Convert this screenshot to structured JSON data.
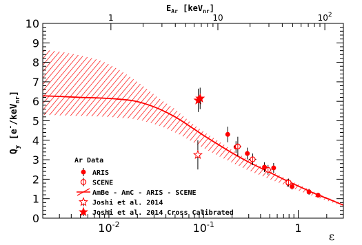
{
  "chart_data": {
    "type": "scatter",
    "x_scale": "log",
    "xlim": [
      0.002,
      3.0
    ],
    "ylim": [
      0,
      10
    ],
    "xlabel": "ε",
    "ylabel": {
      "main": "Q",
      "sub": "y",
      "unit_open": "[e",
      "unit_sup": "-",
      "unit_mid": "/keV",
      "unit_sub": "nr",
      "unit_close": "]"
    },
    "top_axis": {
      "label_main": "E",
      "label_sub": "Ar",
      "unit_open": "[keV",
      "unit_sub": "nr",
      "unit_close": "]",
      "ticks": [
        {
          "energy": 1,
          "label": "1"
        },
        {
          "energy": 10,
          "label": "10"
        },
        {
          "energy": 100,
          "label": "10",
          "sup": "2"
        }
      ]
    },
    "x_ticks_major": [
      {
        "value": 0.01,
        "base": "10",
        "exp": "-2"
      },
      {
        "value": 0.1,
        "base": "10",
        "exp": "-1"
      },
      {
        "value": 1,
        "base": "1",
        "exp": ""
      }
    ],
    "y_ticks": [
      0,
      1,
      2,
      3,
      4,
      5,
      6,
      7,
      8,
      9,
      10
    ],
    "grid": false,
    "legend_placement": "bottom-left",
    "legend_title": "Ar Data",
    "colors": {
      "model": "#ff0000",
      "data": "#ff0000",
      "errorbar": "#000000"
    },
    "model_band": {
      "name": "AmBe - AmC - ARIS - SCENE",
      "x": [
        0.002,
        0.003,
        0.005,
        0.008,
        0.012,
        0.018,
        0.025,
        0.035,
        0.05,
        0.07,
        0.1,
        0.15,
        0.2,
        0.3,
        0.5,
        0.7,
        1.0,
        1.5,
        2.0,
        3.0
      ],
      "y": [
        6.28,
        6.25,
        6.2,
        6.17,
        6.12,
        6.03,
        5.85,
        5.58,
        5.2,
        4.75,
        4.25,
        3.72,
        3.35,
        2.88,
        2.35,
        2.0,
        1.65,
        1.26,
        1.02,
        0.67
      ],
      "upper": [
        8.65,
        8.55,
        8.35,
        8.1,
        7.7,
        7.15,
        6.65,
        6.1,
        5.6,
        5.0,
        4.45,
        3.9,
        3.5,
        3.0,
        2.45,
        2.1,
        1.74,
        1.34,
        1.08,
        0.72
      ],
      "lower": [
        5.3,
        5.28,
        5.25,
        5.22,
        5.17,
        5.1,
        4.95,
        4.72,
        4.4,
        4.02,
        3.6,
        3.15,
        2.85,
        2.45,
        2.0,
        1.72,
        1.42,
        1.1,
        0.9,
        0.6
      ]
    },
    "series": [
      {
        "name": "ARIS",
        "marker": "filled-circle",
        "points": [
          {
            "x": 0.18,
            "y": 4.3,
            "yerr": 0.4,
            "xerr": 0.0
          },
          {
            "x": 0.22,
            "y": 3.65,
            "yerr": 0.3,
            "xerr": 0.01
          },
          {
            "x": 0.29,
            "y": 3.32,
            "yerr": 0.3,
            "xerr": 0.0
          },
          {
            "x": 0.44,
            "y": 2.62,
            "yerr": 0.25,
            "xerr": 0.0
          },
          {
            "x": 0.55,
            "y": 2.58,
            "yerr": 0.25,
            "xerr": 0.0
          },
          {
            "x": 0.78,
            "y": 1.8,
            "yerr": 0.2,
            "xerr": 0.0
          },
          {
            "x": 0.86,
            "y": 1.62,
            "yerr": 0.15,
            "xerr": 0.0
          },
          {
            "x": 1.3,
            "y": 1.35,
            "yerr": 0.15,
            "xerr": 0.0
          },
          {
            "x": 1.62,
            "y": 1.18,
            "yerr": 0.12,
            "xerr": 0.0
          }
        ]
      },
      {
        "name": "SCENE",
        "marker": "open-circle",
        "points": [
          {
            "x": 0.23,
            "y": 3.68,
            "yerr": 0.5,
            "xerr": 0.02
          },
          {
            "x": 0.33,
            "y": 3.02,
            "yerr": 0.3,
            "xerr": 0.03
          },
          {
            "x": 0.48,
            "y": 2.48,
            "yerr": 0.25,
            "xerr": 0.04
          },
          {
            "x": 0.79,
            "y": 1.83,
            "yerr": 0.2,
            "xerr": 0.05
          }
        ]
      },
      {
        "name": "Joshi et al. 2014",
        "marker": "open-star",
        "points": [
          {
            "x": 0.087,
            "y": 3.25,
            "yerr": 0.75,
            "xerr": 0.0
          }
        ]
      },
      {
        "name": "Joshi et al. 2014 Cross Calibrated",
        "marker": "filled-star",
        "points": [
          {
            "x": 0.088,
            "y": 6.05,
            "yerr": 0.6,
            "xerr": 0.0
          },
          {
            "x": 0.092,
            "y": 6.15,
            "yerr": 0.55,
            "xerr": 0.0
          }
        ]
      }
    ]
  }
}
